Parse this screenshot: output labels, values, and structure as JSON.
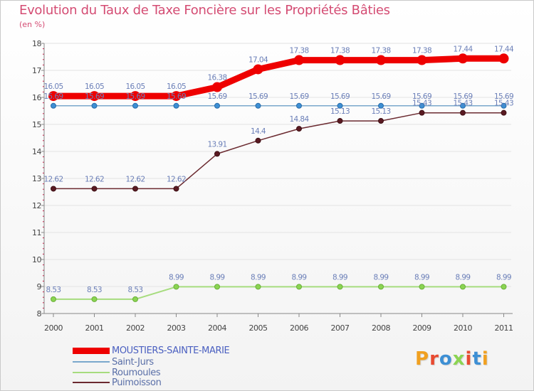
{
  "title": "Evolution du Taux de Taxe Foncière sur les Propriétés Bâties",
  "unit": "(en %)",
  "logo": "Proxiti",
  "colors": {
    "title": "#d44c73",
    "axis": "#888888",
    "axis_tick": "#cc0033",
    "grid": "#e3e3e3"
  },
  "chart_data": {
    "type": "line",
    "title": "Evolution du Taux de Taxe Foncière sur les Propriétés Bâties",
    "ylabel": "(en %)",
    "xlabel": "",
    "ylim": [
      8,
      18
    ],
    "yticks": [
      8,
      9,
      10,
      11,
      12,
      13,
      14,
      15,
      16,
      17,
      18
    ],
    "grid": "horizontal",
    "categories": [
      "2000",
      "2001",
      "2002",
      "2003",
      "2004",
      "2005",
      "2006",
      "2007",
      "2008",
      "2009",
      "2010",
      "2011"
    ],
    "series": [
      {
        "name": "MOUSTIERS-SAINTE-MARIE",
        "color": "#ee0000",
        "labelcolor": "#6b7fb8",
        "values": [
          16.05,
          16.05,
          16.05,
          16.05,
          16.38,
          17.04,
          17.38,
          17.38,
          17.38,
          17.38,
          17.44,
          17.44
        ],
        "labels": [
          "16.05",
          "16.05",
          "16.05",
          "16.05",
          "16.38",
          "17.04",
          "17.38",
          "17.38",
          "17.38",
          "17.38",
          "17.44",
          "17.44"
        ]
      },
      {
        "name": "Saint-Jurs",
        "color": "#7aa8cc",
        "labelcolor": "#6b7fb8",
        "values": [
          15.69,
          15.69,
          15.69,
          15.69,
          15.69,
          15.69,
          15.69,
          15.69,
          15.69,
          15.69,
          15.69,
          15.69
        ],
        "labels": [
          "15.69",
          "15.69",
          "15.69",
          "15.69",
          "15.69",
          "15.69",
          "15.69",
          "15.69",
          "15.69",
          "15.69",
          "15.69",
          "15.69"
        ]
      },
      {
        "name": "Roumoules",
        "color": "#a6dc7e",
        "labelcolor": "#6b7fb8",
        "values": [
          8.53,
          8.53,
          8.53,
          8.99,
          8.99,
          8.99,
          8.99,
          8.99,
          8.99,
          8.99,
          8.99,
          8.99
        ],
        "labels": [
          "8.53",
          "8.53",
          "8.53",
          "8.99",
          "8.99",
          "8.99",
          "8.99",
          "8.99",
          "8.99",
          "8.99",
          "8.99",
          "8.99"
        ]
      },
      {
        "name": "Puimoisson",
        "color": "#6b2a30",
        "labelcolor": "#6b7fb8",
        "values": [
          12.62,
          12.62,
          12.62,
          12.62,
          13.91,
          14.4,
          14.84,
          15.13,
          15.13,
          15.43,
          15.43,
          15.43
        ],
        "labels": [
          "12.62",
          "12.62",
          "12.62",
          "12.62",
          "13.91",
          "14.4",
          "14.84",
          "15.13",
          "15.13",
          "15.43",
          "15.43",
          "15.43"
        ]
      }
    ]
  }
}
